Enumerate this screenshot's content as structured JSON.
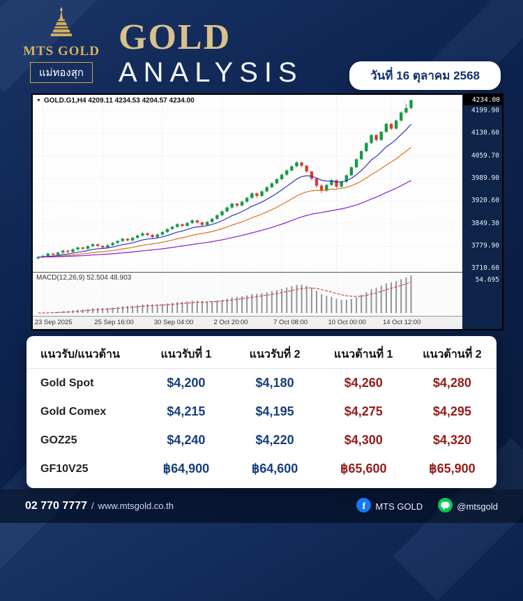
{
  "colors": {
    "navy": "#0d2350",
    "gold": "#d9c18c",
    "candle_up": "#159a47",
    "candle_down": "#e03a2f",
    "ma_fast": "#2a35c8",
    "ma_mid": "#e0711f",
    "ma_slow": "#8a1fd0",
    "macd_hist": "#8f959b",
    "macd_signal": "#d42222",
    "support": "#163e7c",
    "resistance": "#941c1c",
    "facebook": "#1877f2",
    "line": "#06c755"
  },
  "header": {
    "logo": {
      "brand": "MTS GOLD",
      "thai": "แม่ทองสุก"
    },
    "title_line1": "GOLD",
    "title_line2": "ANALYSIS",
    "date_badge": "วันที่ 16 ตุลาคม 2568"
  },
  "chart": {
    "symbol_line": "GOLD.G1,H4 4209.11 4234.53 4204.57 4234.00",
    "price_tag": "4234.00",
    "macd_label": "MACD(12,26,9) 52.504 48.903",
    "macd_scale_top": "54.695"
  },
  "chart_data": [
    {
      "type": "candlestick",
      "title": "GOLD.G1,H4",
      "info_line": "GOLD.G1,H4 4209.11 4234.53 4204.57 4234.00",
      "current_price": 4234.0,
      "ylim": [
        3700,
        4250
      ],
      "y_ticks": [
        4199.9,
        4130.6,
        4059.7,
        3989.9,
        3920.6,
        3849.3,
        3779.9,
        3710.6
      ],
      "x_ticks": [
        "23 Sep 2025",
        "25 Sep 16:00",
        "30 Sep 04:00",
        "2 Oct 20:00",
        "7 Oct 08:00",
        "10 Oct 00:00",
        "14 Oct 12:00"
      ],
      "x_tick_indices": [
        1,
        13,
        25,
        37,
        49,
        60,
        71
      ],
      "moving_averages": [
        {
          "period": 10,
          "color": "#2a35c8"
        },
        {
          "period": 24,
          "color": "#e0711f"
        },
        {
          "period": 60,
          "color": "#8a1fd0"
        }
      ],
      "macd": {
        "label": "MACD(12,26,9) 52.504 48.903",
        "fast": 12,
        "slow": 26,
        "signal": 9,
        "scale_max": "54.695"
      },
      "ohlc": [
        [
          3742,
          3749,
          3739,
          3746
        ],
        [
          3746,
          3753,
          3744,
          3750
        ],
        [
          3750,
          3760,
          3748,
          3757
        ],
        [
          3757,
          3759,
          3749,
          3753
        ],
        [
          3753,
          3763,
          3751,
          3760
        ],
        [
          3760,
          3769,
          3757,
          3766
        ],
        [
          3766,
          3768,
          3758,
          3762
        ],
        [
          3762,
          3773,
          3760,
          3770
        ],
        [
          3770,
          3779,
          3767,
          3776
        ],
        [
          3776,
          3778,
          3768,
          3772
        ],
        [
          3772,
          3783,
          3770,
          3780
        ],
        [
          3780,
          3789,
          3777,
          3786
        ],
        [
          3786,
          3788,
          3778,
          3781
        ],
        [
          3781,
          3783,
          3772,
          3776
        ],
        [
          3776,
          3786,
          3773,
          3783
        ],
        [
          3783,
          3793,
          3780,
          3790
        ],
        [
          3790,
          3799,
          3787,
          3796
        ],
        [
          3796,
          3806,
          3793,
          3803
        ],
        [
          3803,
          3805,
          3794,
          3798
        ],
        [
          3798,
          3809,
          3795,
          3806
        ],
        [
          3806,
          3816,
          3803,
          3813
        ],
        [
          3813,
          3823,
          3810,
          3820
        ],
        [
          3820,
          3822,
          3811,
          3815
        ],
        [
          3815,
          3817,
          3804,
          3808
        ],
        [
          3808,
          3819,
          3805,
          3816
        ],
        [
          3816,
          3827,
          3813,
          3824
        ],
        [
          3824,
          3836,
          3821,
          3833
        ],
        [
          3833,
          3843,
          3830,
          3840
        ],
        [
          3840,
          3851,
          3837,
          3848
        ],
        [
          3848,
          3850,
          3839,
          3843
        ],
        [
          3843,
          3855,
          3840,
          3852
        ],
        [
          3852,
          3863,
          3849,
          3860
        ],
        [
          3860,
          3862,
          3850,
          3854
        ],
        [
          3854,
          3856,
          3841,
          3846
        ],
        [
          3846,
          3858,
          3843,
          3855
        ],
        [
          3855,
          3868,
          3852,
          3865
        ],
        [
          3865,
          3879,
          3862,
          3876
        ],
        [
          3876,
          3891,
          3873,
          3888
        ],
        [
          3888,
          3903,
          3885,
          3900
        ],
        [
          3900,
          3915,
          3897,
          3912
        ],
        [
          3912,
          3914,
          3901,
          3906
        ],
        [
          3906,
          3921,
          3903,
          3918
        ],
        [
          3918,
          3933,
          3915,
          3930
        ],
        [
          3930,
          3947,
          3927,
          3944
        ],
        [
          3944,
          3946,
          3930,
          3936
        ],
        [
          3936,
          3953,
          3933,
          3950
        ],
        [
          3950,
          3966,
          3947,
          3963
        ],
        [
          3963,
          3978,
          3960,
          3975
        ],
        [
          3975,
          3991,
          3972,
          3988
        ],
        [
          3988,
          4005,
          3985,
          4002
        ],
        [
          4002,
          4018,
          3999,
          4015
        ],
        [
          4015,
          4031,
          4012,
          4028
        ],
        [
          4028,
          4044,
          4025,
          4040
        ],
        [
          4040,
          4042,
          4025,
          4030
        ],
        [
          4030,
          4032,
          4008,
          4012
        ],
        [
          4012,
          4014,
          3985,
          3990
        ],
        [
          3990,
          3992,
          3962,
          3968
        ],
        [
          3968,
          3972,
          3945,
          3952
        ],
        [
          3952,
          3973,
          3949,
          3970
        ],
        [
          3970,
          3988,
          3967,
          3985
        ],
        [
          3985,
          3987,
          3960,
          3965
        ],
        [
          3965,
          3983,
          3962,
          3980
        ],
        [
          3980,
          4003,
          3977,
          4000
        ],
        [
          4000,
          4028,
          3997,
          4025
        ],
        [
          4025,
          4053,
          4022,
          4050
        ],
        [
          4050,
          4078,
          4047,
          4075
        ],
        [
          4075,
          4103,
          4072,
          4100
        ],
        [
          4100,
          4128,
          4097,
          4125
        ],
        [
          4125,
          4127,
          4105,
          4110
        ],
        [
          4110,
          4138,
          4107,
          4135
        ],
        [
          4135,
          4163,
          4132,
          4160
        ],
        [
          4160,
          4162,
          4140,
          4145
        ],
        [
          4145,
          4173,
          4142,
          4170
        ],
        [
          4170,
          4198,
          4167,
          4195
        ],
        [
          4195,
          4221,
          4192,
          4209
        ],
        [
          4209,
          4234.5,
          4204.6,
          4234
        ]
      ]
    },
    {
      "type": "table",
      "headers": [
        "แนวรับ/แนวต้าน",
        "แนวรับที่ 1",
        "แนวรับที่ 2",
        "แนวต้านที่ 1",
        "แนวต้านที่ 2"
      ],
      "rows": [
        [
          "Gold Spot",
          "$4,200",
          "$4,180",
          "$4,260",
          "$4,280"
        ],
        [
          "Gold Comex",
          "$4,215",
          "$4,195",
          "$4,275",
          "$4,295"
        ],
        [
          "GOZ25",
          "$4,240",
          "$4,220",
          "$4,300",
          "$4,320"
        ],
        [
          "GF10V25",
          "฿64,900",
          "฿64,600",
          "฿65,600",
          "฿65,900"
        ]
      ]
    }
  ],
  "table": {
    "headers": [
      "แนวรับ/แนวต้าน",
      "แนวรับที่ 1",
      "แนวรับที่ 2",
      "แนวต้านที่ 1",
      "แนวต้านที่ 2"
    ],
    "rows": [
      {
        "name": "Gold Spot",
        "values": [
          "$4,200",
          "$4,180",
          "$4,260",
          "$4,280"
        ]
      },
      {
        "name": "Gold Comex",
        "values": [
          "$4,215",
          "$4,195",
          "$4,275",
          "$4,295"
        ]
      },
      {
        "name": "GOZ25",
        "values": [
          "$4,240",
          "$4,220",
          "$4,300",
          "$4,320"
        ]
      },
      {
        "name": "GF10V25",
        "values": [
          "฿64,900",
          "฿64,600",
          "฿65,600",
          "฿65,900"
        ]
      }
    ]
  },
  "footer": {
    "phone": "02 770 7777",
    "separator": "/",
    "website": "www.mtsgold.co.th",
    "facebook": "MTS GOLD",
    "line": "@mtsgold"
  }
}
